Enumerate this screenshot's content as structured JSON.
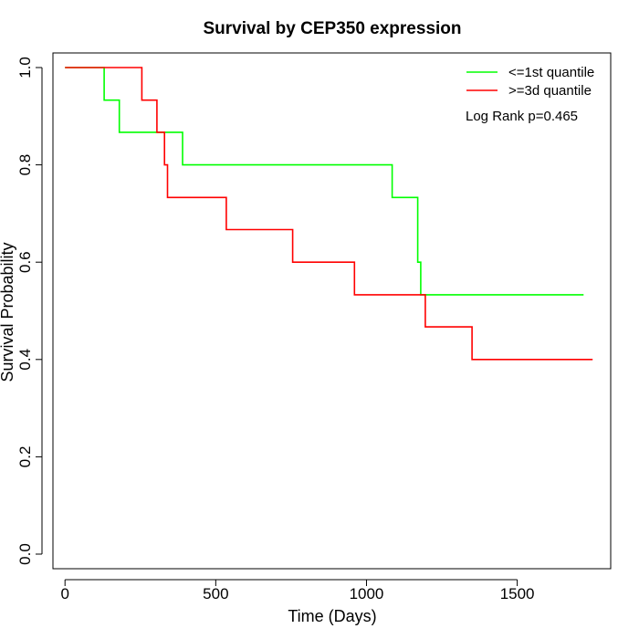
{
  "chart_data": {
    "type": "line",
    "title": "Survival by CEP350 expression",
    "xlabel": "Time (Days)",
    "ylabel": "Survival Probability",
    "xlim": [
      -40,
      1810
    ],
    "ylim": [
      -0.03,
      1.03
    ],
    "xticks": [
      0,
      500,
      1000,
      1500
    ],
    "yticks": [
      0.0,
      0.2,
      0.4,
      0.6,
      0.8,
      1.0
    ],
    "xtick_labels": [
      "0",
      "500",
      "1000",
      "1500"
    ],
    "ytick_labels": [
      "0.0",
      "0.2",
      "0.4",
      "0.6",
      "0.8",
      "1.0"
    ],
    "grid": false,
    "legend_position": "top-right",
    "annotation": "Log Rank p=0.465",
    "series": [
      {
        "name": "<=1st quantile",
        "color": "#00ff00",
        "points": [
          [
            0,
            1.0
          ],
          [
            130,
            1.0
          ],
          [
            130,
            0.933
          ],
          [
            180,
            0.933
          ],
          [
            180,
            0.867
          ],
          [
            390,
            0.867
          ],
          [
            390,
            0.8
          ],
          [
            1085,
            0.8
          ],
          [
            1085,
            0.733
          ],
          [
            1170,
            0.733
          ],
          [
            1170,
            0.6
          ],
          [
            1180,
            0.6
          ],
          [
            1180,
            0.533
          ],
          [
            1720,
            0.533
          ]
        ]
      },
      {
        "name": ">=3d quantile",
        "color": "#ff0000",
        "points": [
          [
            0,
            1.0
          ],
          [
            255,
            1.0
          ],
          [
            255,
            0.933
          ],
          [
            305,
            0.933
          ],
          [
            305,
            0.867
          ],
          [
            330,
            0.867
          ],
          [
            330,
            0.8
          ],
          [
            340,
            0.8
          ],
          [
            340,
            0.733
          ],
          [
            535,
            0.733
          ],
          [
            535,
            0.667
          ],
          [
            755,
            0.667
          ],
          [
            755,
            0.6
          ],
          [
            960,
            0.6
          ],
          [
            960,
            0.533
          ],
          [
            1195,
            0.533
          ],
          [
            1195,
            0.467
          ],
          [
            1350,
            0.467
          ],
          [
            1350,
            0.4
          ],
          [
            1750,
            0.4
          ]
        ]
      }
    ]
  }
}
